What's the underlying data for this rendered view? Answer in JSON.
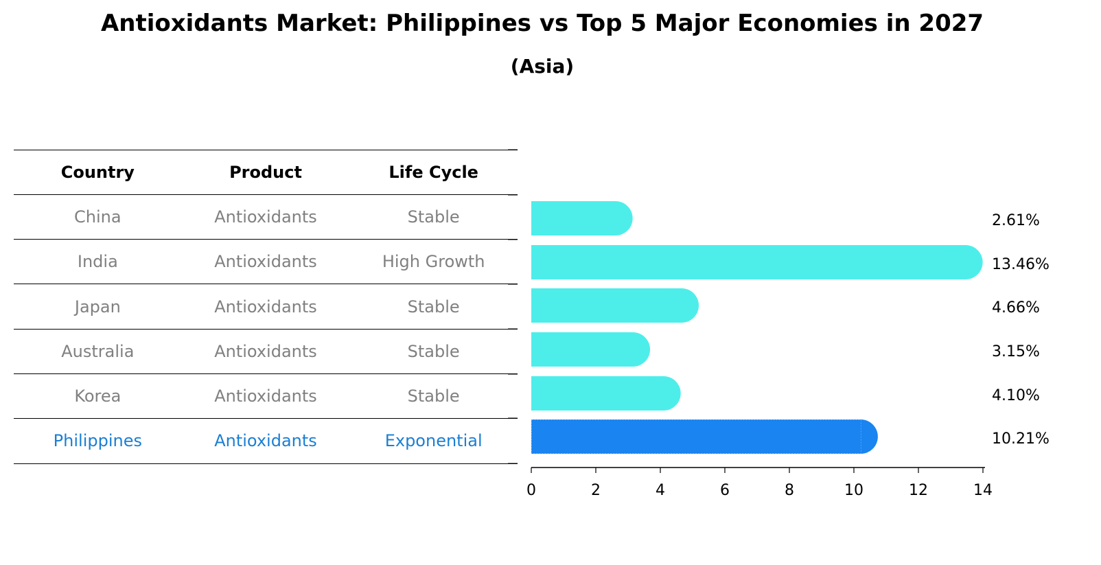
{
  "title": "Antioxidants Market: Philippines vs Top 5 Major Economies in 2027",
  "subtitle": "(Asia)",
  "table": {
    "headers": [
      "Country",
      "Product",
      "Life Cycle"
    ],
    "rows": [
      {
        "country": "China",
        "product": "Antioxidants",
        "life_cycle": "Stable"
      },
      {
        "country": "India",
        "product": "Antioxidants",
        "life_cycle": "High Growth"
      },
      {
        "country": "Japan",
        "product": "Antioxidants",
        "life_cycle": "Stable"
      },
      {
        "country": "Australia",
        "product": "Antioxidants",
        "life_cycle": "Stable"
      },
      {
        "country": "Korea",
        "product": "Antioxidants",
        "life_cycle": "Stable"
      },
      {
        "country": "Philippines",
        "product": "Antioxidants",
        "life_cycle": "Exponential"
      }
    ]
  },
  "colors": {
    "bar_default": "#4deeea",
    "bar_highlight": "#1a84f0",
    "text_muted": "#808080",
    "text_highlight": "#1a7fd4"
  },
  "chart_data": {
    "type": "bar",
    "orientation": "horizontal",
    "title": "Antioxidants Market: Philippines vs Top 5 Major Economies in 2027",
    "subtitle": "(Asia)",
    "categories": [
      "China",
      "India",
      "Japan",
      "Australia",
      "Korea",
      "Philippines"
    ],
    "values": [
      2.61,
      13.46,
      4.66,
      3.15,
      4.1,
      10.21
    ],
    "value_labels": [
      "2.61%",
      "13.46%",
      "4.66%",
      "3.15%",
      "4.10%",
      "10.21%"
    ],
    "highlight": "Philippines",
    "xlabel": "",
    "ylabel": "",
    "xlim": [
      0,
      14
    ],
    "xticks": [
      0,
      2,
      4,
      6,
      8,
      10,
      12,
      14
    ],
    "xtick_labels": [
      "0",
      "2",
      "4",
      "6",
      "8",
      "10",
      "12",
      "14"
    ],
    "grid": false,
    "legend": null
  }
}
